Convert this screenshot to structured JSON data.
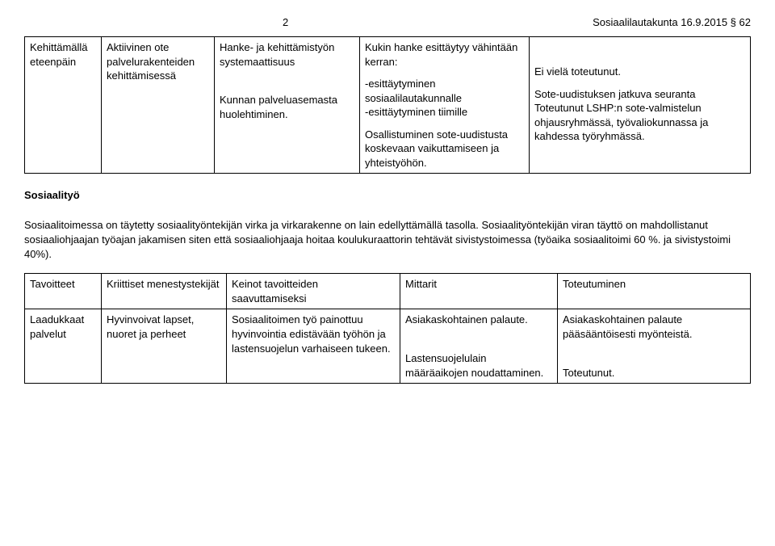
{
  "header": {
    "page_number": "2",
    "doc_ref": "Sosiaalilautakunta 16.9.2015 § 62"
  },
  "table1": {
    "r1c1": "Kehittämällä eteenpäin",
    "r1c2": "Aktiivinen ote palvelurakenteiden kehittämisessä",
    "r1c3a": "Hanke- ja kehittämistyön systemaattisuus",
    "r1c3b": "Kunnan palveluasemasta huolehtiminen.",
    "r1c4a": "Kukin hanke esittäytyy vähintään kerran:",
    "r1c4b": "-esittäytyminen sosiaalilautakunnalle",
    "r1c4c": "-esittäytyminen tiimille",
    "r1c4d": "Osallistuminen sote-uudistusta koskevaan vaikuttamiseen ja yhteistyöhön.",
    "r1c5a": "Ei vielä toteutunut.",
    "r1c5b": "Sote-uudistuksen jatkuva seuranta",
    "r1c5c": "Toteutunut  LSHP:n sote-valmistelun  ohjausryhmässä, työvaliokunnassa ja kahdessa työryhmässä."
  },
  "section": {
    "heading": "Sosiaalityö",
    "para": "Sosiaalitoimessa on  täytetty sosiaalityöntekijän virka ja virkarakenne on lain edellyttämällä tasolla. Sosiaalityöntekijän viran täyttö on mahdollistanut sosiaaliohjaajan työajan jakamisen siten että sosiaaliohjaaja hoitaa koulukuraattorin tehtävät sivistystoimessa (työaika sosiaalitoimi 60 %. ja sivistystoimi 40%)."
  },
  "table2": {
    "h1": "Tavoitteet",
    "h2": "Kriittiset menestystekijät",
    "h3": "Keinot tavoitteiden saavuttamiseksi",
    "h4": "Mittarit",
    "h5": "Toteutuminen",
    "r1c1": "Laadukkaat palvelut",
    "r1c2": "Hyvinvoivat lapset, nuoret ja perheet",
    "r1c3": "Sosiaalitoimen työ painottuu hyvinvointia edistävään työhön ja lastensuojelun varhaiseen tukeen.",
    "r1c4a": "Asiakaskohtainen palaute.",
    "r1c4b": "Lastensuojelulain määräaikojen noudattaminen.",
    "r1c5a": "Asiakaskohtainen palaute pääsääntöisesti myönteistä.",
    "r1c5b": "Toteutunut."
  }
}
